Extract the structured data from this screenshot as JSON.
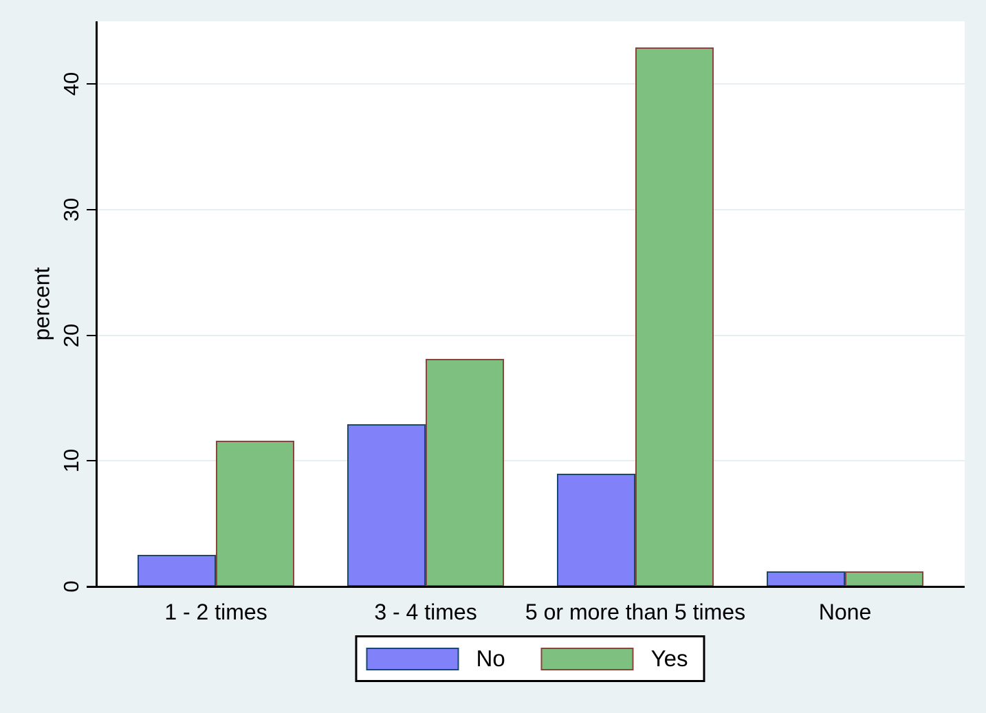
{
  "chart_data": {
    "type": "bar",
    "categories": [
      "1 - 2 times",
      "3 - 4 times",
      "5 or more than 5 times",
      "None"
    ],
    "series": [
      {
        "name": "No",
        "fill": "#8181fa",
        "border": "#1a476f",
        "values": [
          2.5,
          12.9,
          9.0,
          1.2
        ]
      },
      {
        "name": "Yes",
        "fill": "#7ec07f",
        "border": "#8e423c",
        "values": [
          11.6,
          18.1,
          42.9,
          1.2
        ]
      }
    ],
    "title": "",
    "xlabel": "",
    "ylabel": "percent",
    "yticks": [
      0,
      10,
      20,
      30,
      40
    ],
    "ylim": [
      0,
      45
    ],
    "grid": true,
    "legend_position": "bottom-center",
    "legend_labels": [
      "No",
      "Yes"
    ],
    "colors": {
      "background": "#eaf2f3",
      "plot_background": "#ffffff",
      "gridline": "#e8eff2",
      "axis": "#000000",
      "text": "#000000",
      "legend_background": "#ffffff",
      "legend_border": "#000000"
    }
  }
}
